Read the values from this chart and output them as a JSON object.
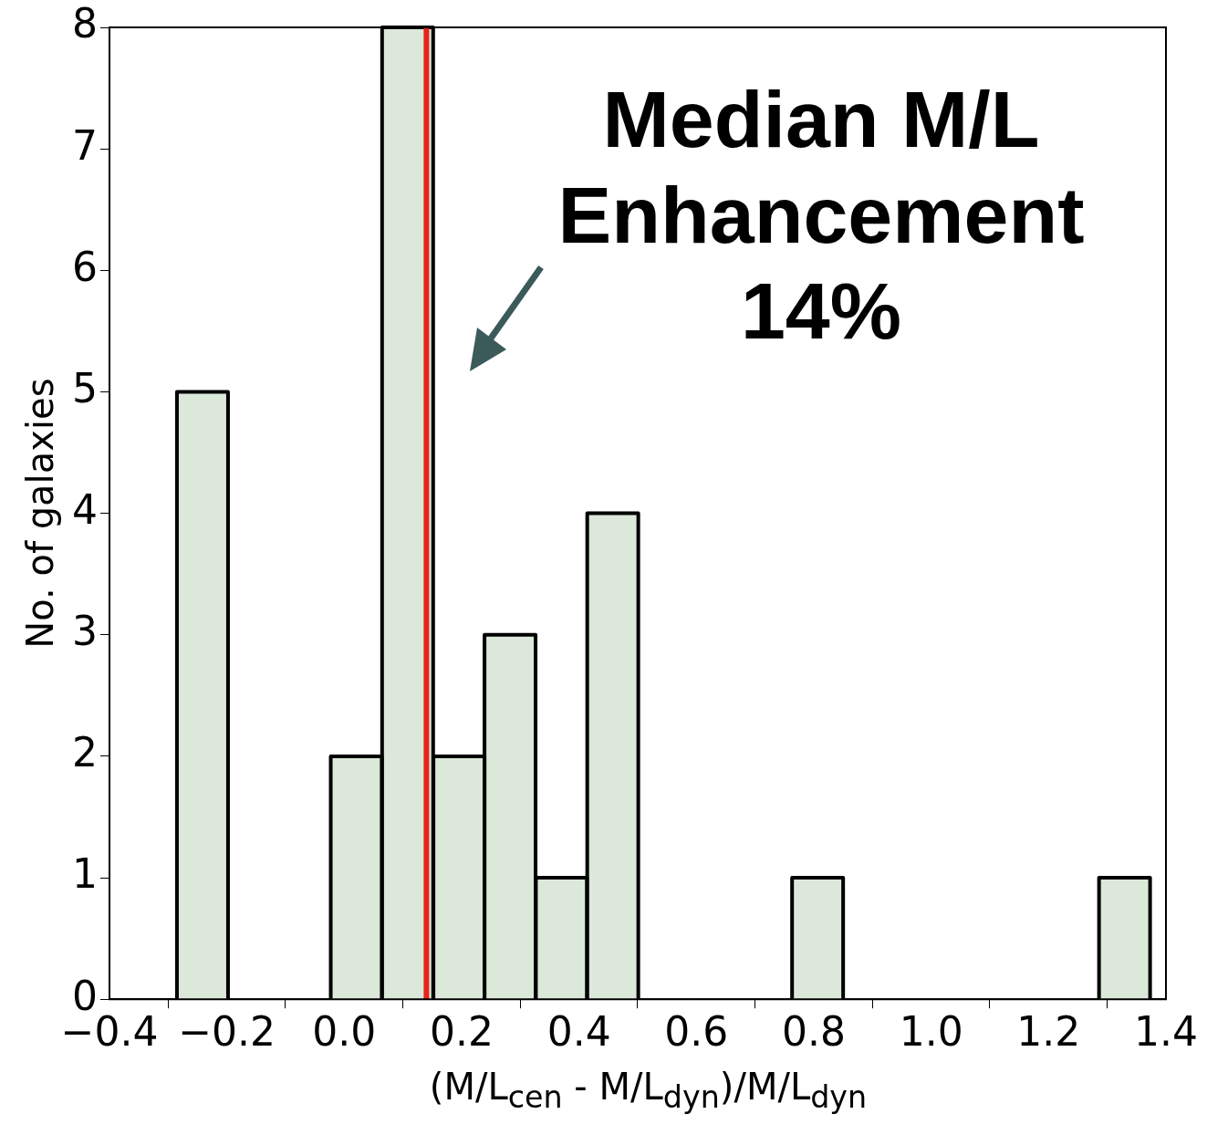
{
  "chart_data": {
    "type": "histogram",
    "bins": [
      -0.285,
      -0.198,
      -0.11,
      -0.023,
      0.064,
      0.152,
      0.239,
      0.326,
      0.414,
      0.501,
      0.588,
      0.675,
      0.763,
      0.85,
      0.937,
      1.025,
      1.112,
      1.199,
      1.286,
      1.373
    ],
    "values": [
      5,
      0,
      0,
      2,
      8,
      2,
      3,
      1,
      4,
      0,
      0,
      0,
      1,
      0,
      0,
      0,
      0,
      0,
      1
    ],
    "color": "#dbe8da",
    "xlabel": "(M/L$_{cen}$ - M/L$_{dyn}$)/M/L$_{dyn}$",
    "ylabel": "No. of galaxies",
    "xlim": [
      -0.4,
      1.4
    ],
    "xticks": [
      {
        "value": -0.4,
        "label": "−0.4"
      },
      {
        "value": -0.2,
        "label": "−0.2"
      },
      {
        "value": 0,
        "label": "0.0"
      },
      {
        "value": 0.2,
        "label": "0.2"
      },
      {
        "value": 0.4,
        "label": "0.4"
      },
      {
        "value": 0.6,
        "label": "0.6"
      },
      {
        "value": 0.8,
        "label": "0.8"
      },
      {
        "value": 1.0,
        "label": "1.0"
      },
      {
        "value": 1.2,
        "label": "1.2"
      },
      {
        "value": 1.4,
        "label": "1.4"
      }
    ],
    "ylim": [
      0,
      8
    ],
    "yticks": [
      0,
      1,
      2,
      3,
      4,
      5,
      6,
      7,
      8
    ],
    "ref_lines": [
      {
        "axis": "x",
        "value": 0.14,
        "color": "#e8231a"
      }
    ],
    "annotations": [
      "Median M/L\nEnhancement\n14%"
    ],
    "grid": false,
    "legend": false
  }
}
